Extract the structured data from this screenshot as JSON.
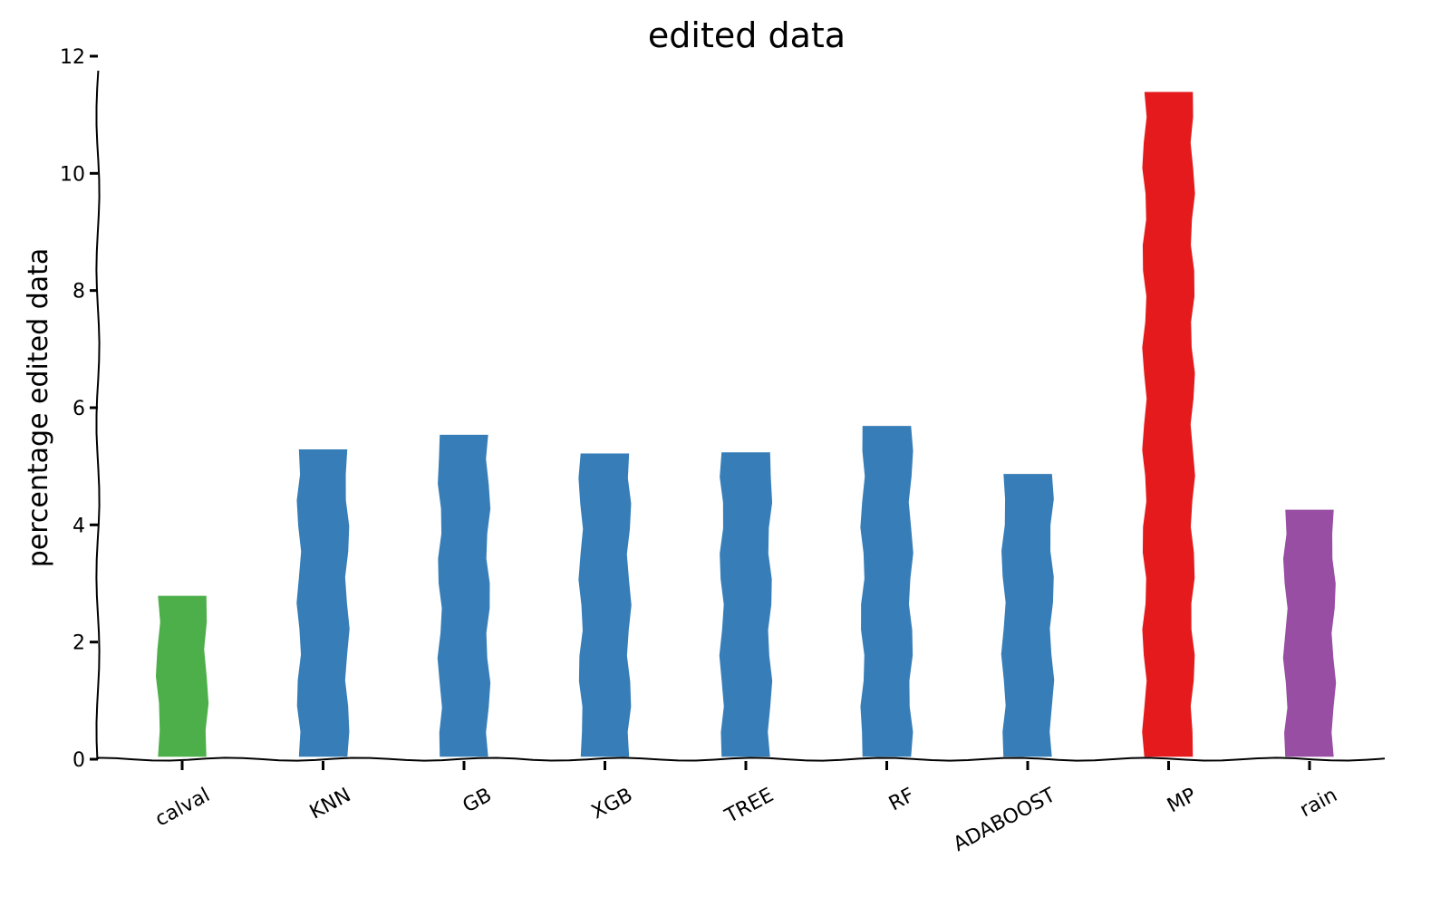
{
  "chart_data": {
    "type": "bar",
    "title": "edited data",
    "xlabel": "",
    "ylabel": "percentage edited data",
    "categories": [
      "calval",
      "KNN",
      "GB",
      "XGB",
      "TREE",
      "RF",
      "ADABOOST",
      "MP",
      "rain"
    ],
    "values": [
      2.8,
      5.3,
      5.55,
      5.23,
      5.25,
      5.7,
      4.88,
      11.4,
      4.27
    ],
    "colors": [
      "#4daf4a",
      "#377eb8",
      "#377eb8",
      "#377eb8",
      "#377eb8",
      "#377eb8",
      "#377eb8",
      "#e41a1c",
      "#984ea3"
    ],
    "ylim": [
      0,
      12
    ],
    "yticks": [
      0,
      2,
      4,
      6,
      8,
      10,
      12
    ],
    "grid": false,
    "legend": "none"
  }
}
